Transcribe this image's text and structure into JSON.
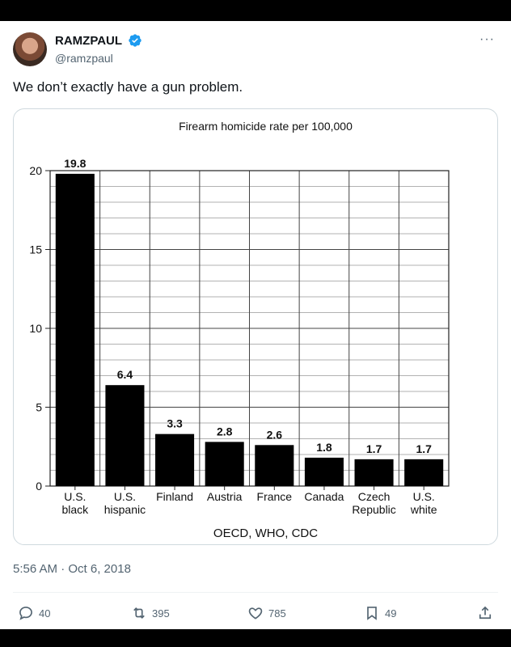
{
  "author": {
    "display_name": "RAMZPAUL",
    "handle": "@ramzpaul"
  },
  "tweet": {
    "text": "We don’t exactly have a gun problem.",
    "timestamp": "5:56 AM · Oct 6, 2018"
  },
  "metrics": {
    "replies": "40",
    "retweets": "395",
    "likes": "785",
    "bookmarks": "49"
  },
  "colors": {
    "verified": "#1d9bf0",
    "bars": "#000000"
  },
  "chart_data": {
    "type": "bar",
    "title": "Firearm homicide rate per 100,000",
    "source": "OECD, WHO, CDC",
    "categories": [
      [
        "U.S.",
        "black"
      ],
      [
        "U.S.",
        "hispanic"
      ],
      [
        "Finland"
      ],
      [
        "Austria"
      ],
      [
        "France"
      ],
      [
        "Canada"
      ],
      [
        "Czech",
        "Republic"
      ],
      [
        "U.S.",
        "white"
      ]
    ],
    "values": [
      19.8,
      6.4,
      3.3,
      2.8,
      2.6,
      1.8,
      1.7,
      1.7
    ],
    "value_labels": [
      "19.8",
      "6.4",
      "3.3",
      "2.8",
      "2.6",
      "1.8",
      "1.7",
      "1.7"
    ],
    "ylim": [
      0,
      20
    ],
    "yticks": [
      0,
      5,
      10,
      15,
      20
    ],
    "grid": true
  }
}
